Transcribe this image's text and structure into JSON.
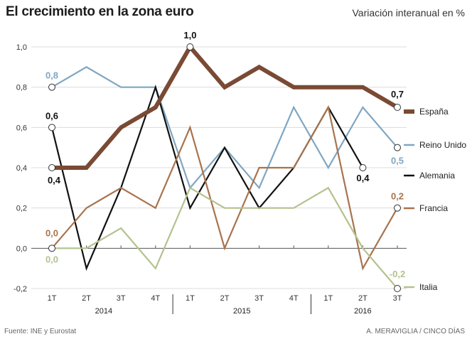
{
  "title": "El crecimiento en la zona euro",
  "subtitle": "Variación interanual en %",
  "source": "Fuente: INE y Eurostat",
  "credit": "A. MERAVIGLIA / CINCO DÍAS",
  "chart_data": {
    "type": "line",
    "title": "El crecimiento en la zona euro",
    "ylabel": "Variación interanual en %",
    "xlabel": "",
    "ylim": [
      -0.2,
      1.0
    ],
    "yticks": [
      -0.2,
      0.0,
      0.2,
      0.4,
      0.6,
      0.8,
      1.0
    ],
    "ytick_labels": [
      "-0,2",
      "0,0",
      "0,2",
      "0,4",
      "0,6",
      "0,8",
      "1,0"
    ],
    "grid": "horizontal",
    "categories": [
      "1T",
      "2T",
      "3T",
      "4T",
      "1T",
      "2T",
      "3T",
      "4T",
      "1T",
      "2T",
      "3T"
    ],
    "years": [
      {
        "label": "2014",
        "from": 0,
        "to": 3
      },
      {
        "label": "2015",
        "from": 4,
        "to": 7
      },
      {
        "label": "2016",
        "from": 8,
        "to": 10
      }
    ],
    "series": [
      {
        "name": "España",
        "color": "#7a4a34",
        "width": "thick",
        "values": [
          0.4,
          0.4,
          0.6,
          0.7,
          1.0,
          0.8,
          0.9,
          0.8,
          0.8,
          0.8,
          0.7
        ]
      },
      {
        "name": "Reino Unido",
        "color": "#7fa6c2",
        "width": "thin",
        "values": [
          0.8,
          0.9,
          0.8,
          0.8,
          0.3,
          0.5,
          0.3,
          0.7,
          0.4,
          0.7,
          0.5
        ]
      },
      {
        "name": "Alemania",
        "color": "#111111",
        "width": "thin",
        "values": [
          0.6,
          -0.1,
          0.3,
          0.8,
          0.2,
          0.5,
          0.2,
          0.4,
          0.7,
          0.4,
          null
        ]
      },
      {
        "name": "Francia",
        "color": "#a8734d",
        "width": "thin",
        "values": [
          0.0,
          0.2,
          0.3,
          0.2,
          0.6,
          0.0,
          0.4,
          0.4,
          0.7,
          -0.1,
          0.2
        ]
      },
      {
        "name": "Italia",
        "color": "#b3c28e",
        "width": "thin",
        "values": [
          0.0,
          0.0,
          0.1,
          -0.1,
          0.3,
          0.2,
          0.2,
          0.2,
          0.3,
          0.0,
          -0.2
        ]
      }
    ],
    "annotations": [
      {
        "series": "Reino Unido",
        "index": 0,
        "text": "0,8",
        "color": "#7fa6c2",
        "marker": true
      },
      {
        "series": "Alemania",
        "index": 0,
        "text": "0,6",
        "color": "#111111",
        "marker": true
      },
      {
        "series": "España",
        "index": 0,
        "text": "0,4",
        "color": "#111111",
        "marker": true
      },
      {
        "series": "Francia",
        "index": 0,
        "text": "0,0",
        "color": "#a8734d",
        "marker": true
      },
      {
        "series": "Italia",
        "index": 0,
        "text": "0,0",
        "color": "#b3c28e",
        "marker": false
      },
      {
        "series": "España",
        "index": 4,
        "text": "1,0",
        "color": "#111111",
        "marker": true
      },
      {
        "series": "España",
        "index": 10,
        "text": "0,7",
        "color": "#111111",
        "marker": true
      },
      {
        "series": "Reino Unido",
        "index": 10,
        "text": "0,5",
        "color": "#7fa6c2",
        "marker": true
      },
      {
        "series": "Alemania",
        "index": 9,
        "text": "0,4",
        "color": "#111111",
        "marker": true
      },
      {
        "series": "Francia",
        "index": 10,
        "text": "0,2",
        "color": "#a8734d",
        "marker": true
      },
      {
        "series": "Italia",
        "index": 10,
        "text": "-0,2",
        "color": "#b3c28e",
        "marker": true
      }
    ],
    "legend_position": "right"
  }
}
